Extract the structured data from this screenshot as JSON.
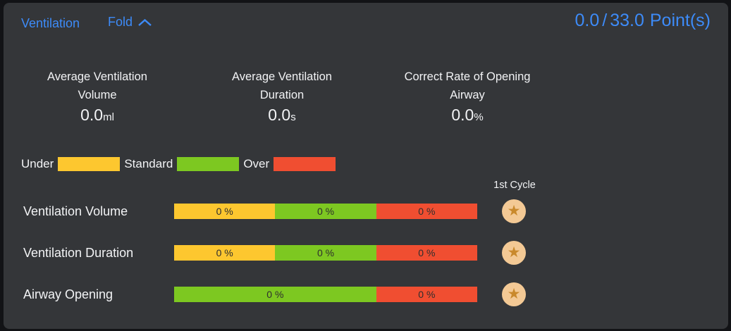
{
  "header": {
    "title": "Ventilation",
    "fold_label": "Fold",
    "score_current": "0.0",
    "score_divider": "/",
    "score_total": "33.0",
    "score_unit": "Point(s)"
  },
  "stats": [
    {
      "label_line1": "Average Ventilation",
      "label_line2": "Volume",
      "value": "0.0",
      "unit": "ml"
    },
    {
      "label_line1": "Average Ventilation",
      "label_line2": "Duration",
      "value": "0.0",
      "unit": "s"
    },
    {
      "label_line1": "Correct Rate of Opening",
      "label_line2": "Airway",
      "value": "0.0",
      "unit": "%"
    }
  ],
  "legend": [
    {
      "label": "Under",
      "color": "#fdc72f"
    },
    {
      "label": "Standard",
      "color": "#7dc821"
    },
    {
      "label": "Over",
      "color": "#f04e31"
    }
  ],
  "cycle_header": "1st Cycle",
  "rows": [
    {
      "label": "Ventilation Volume",
      "segments": [
        {
          "name": "under",
          "value": "0 %",
          "color": "#fdc72f",
          "width_pct": 33.34
        },
        {
          "name": "standard",
          "value": "0 %",
          "color": "#7dc821",
          "width_pct": 33.33
        },
        {
          "name": "over",
          "value": "0 %",
          "color": "#f04e31",
          "width_pct": 33.33
        }
      ]
    },
    {
      "label": "Ventilation Duration",
      "segments": [
        {
          "name": "under",
          "value": "0 %",
          "color": "#fdc72f",
          "width_pct": 33.34
        },
        {
          "name": "standard",
          "value": "0 %",
          "color": "#7dc821",
          "width_pct": 33.33
        },
        {
          "name": "over",
          "value": "0 %",
          "color": "#f04e31",
          "width_pct": 33.33
        }
      ]
    },
    {
      "label": "Airway Opening",
      "segments": [
        {
          "name": "standard",
          "value": "0 %",
          "color": "#7dc821",
          "width_pct": 66.67
        },
        {
          "name": "over",
          "value": "0 %",
          "color": "#f04e31",
          "width_pct": 33.33
        }
      ]
    }
  ],
  "chart_data": {
    "type": "bar",
    "categories": [
      "Ventilation Volume",
      "Ventilation Duration",
      "Airway Opening"
    ],
    "series": [
      {
        "name": "Under",
        "color": "#fdc72f",
        "values": [
          0,
          0,
          null
        ]
      },
      {
        "name": "Standard",
        "color": "#7dc821",
        "values": [
          0,
          0,
          0
        ]
      },
      {
        "name": "Over",
        "color": "#f04e31",
        "values": [
          0,
          0,
          0
        ]
      }
    ],
    "value_unit": "%",
    "legend_position": "top",
    "annotations": [
      "1st Cycle"
    ]
  },
  "colors": {
    "accent_blue": "#3d8bf8",
    "panel_bg": "#343639",
    "outer_bg": "#121316",
    "star_badge_bg": "#f3c995",
    "star_glyph": "#c9892c"
  }
}
